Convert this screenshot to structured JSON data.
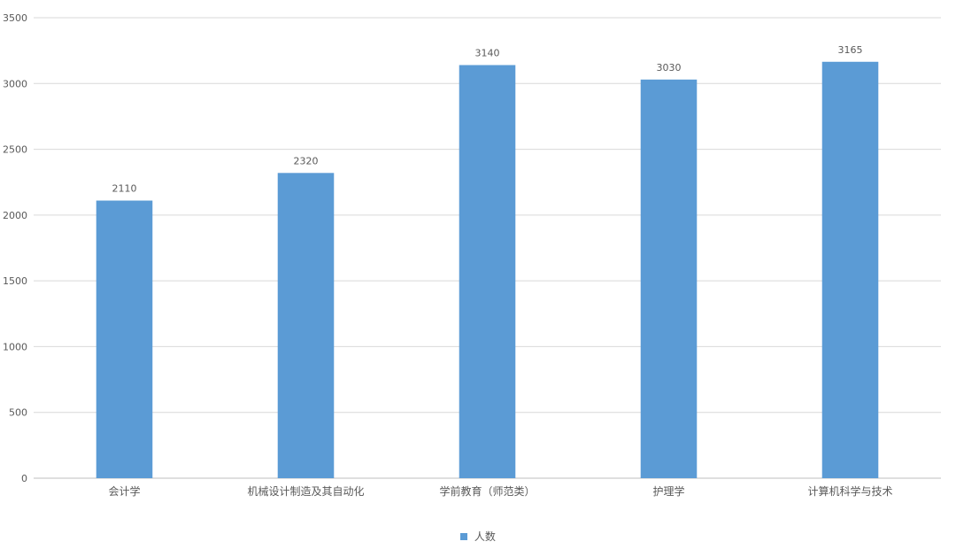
{
  "chart_data": {
    "type": "bar",
    "categories": [
      "会计学",
      "机械设计制造及其自动化",
      "学前教育（师范类）",
      "护理学",
      "计算机科学与技术"
    ],
    "series": [
      {
        "name": "人数",
        "values": [
          2110,
          2320,
          3140,
          3030,
          3165
        ]
      }
    ],
    "data_labels": [
      "2110",
      "2320",
      "3140",
      "3030",
      "3165"
    ],
    "ylim": [
      0,
      3500
    ],
    "yticks": [
      0,
      500,
      1000,
      1500,
      2000,
      2500,
      3000,
      3500
    ],
    "ytick_labels": [
      "0",
      "500",
      "1000",
      "1500",
      "2000",
      "2500",
      "3000",
      "3500"
    ],
    "grid": true,
    "legend_position": "bottom",
    "colors": {
      "bar": "#5b9bd5",
      "grid": "#d9d9d9",
      "text": "#595959"
    }
  }
}
